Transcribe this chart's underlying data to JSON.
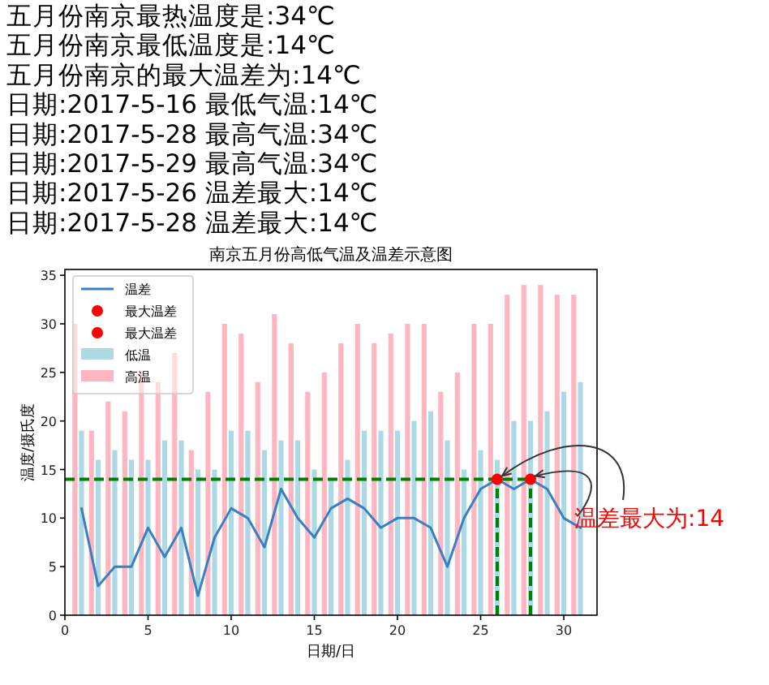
{
  "chart_data": {
    "type": "bar",
    "title": "南京五月份高低气温及温差示意图",
    "xlabel": "日期/日",
    "ylabel": "温度/摄氏度",
    "annotations": [
      "五月份南京最热温度是:34℃",
      "五月份南京最低温度是:14℃",
      "五月份南京的最大温差为:14℃",
      "日期:2017-5-16 最低气温:14℃",
      "日期:2017-5-28 最高气温:34℃",
      "日期:2017-5-29 最高气温:34℃",
      "日期:2017-5-26 温差最大:14℃",
      "日期:2017-5-28 温差最大:14℃",
      {
        "text": "温差最大为:14",
        "x": 28,
        "y": 14
      }
    ],
    "xlim": [
      0,
      32
    ],
    "ylim": [
      0,
      35.6
    ],
    "xticks": [
      0,
      5,
      10,
      15,
      20,
      25,
      30
    ],
    "yticks": [
      0,
      5,
      10,
      15,
      20,
      25,
      30,
      35
    ],
    "legend": "top left",
    "x": [
      1,
      2,
      3,
      4,
      5,
      6,
      7,
      8,
      9,
      10,
      11,
      12,
      13,
      14,
      15,
      16,
      17,
      18,
      19,
      20,
      21,
      22,
      23,
      24,
      25,
      26,
      27,
      28,
      29,
      30,
      31
    ],
    "series": [
      {
        "name": "温差",
        "type": "line",
        "color": "#3a7fc0",
        "values": [
          11,
          3,
          5,
          5,
          9,
          6,
          9,
          2,
          8,
          11,
          10,
          7,
          13,
          10,
          8,
          11,
          12,
          11,
          9,
          10,
          10,
          9,
          5,
          10,
          13,
          14,
          13,
          14,
          13,
          10,
          9
        ]
      },
      {
        "name": "最大温差",
        "type": "scatter",
        "color": "#ff0000",
        "marker": "circle",
        "x": [
          26
        ],
        "values": [
          14
        ]
      },
      {
        "name": "最大温差",
        "type": "scatter",
        "color": "#ff0000",
        "marker": "circle",
        "x": [
          28
        ],
        "values": [
          14
        ]
      },
      {
        "name": "低温",
        "color": "#add8e6",
        "values": [
          19,
          16,
          17,
          16,
          16,
          18,
          18,
          15,
          15,
          19,
          19,
          17,
          18,
          18,
          15,
          14,
          16,
          19,
          19,
          19,
          20,
          21,
          18,
          15,
          17,
          16,
          20,
          20,
          21,
          23,
          24
        ]
      },
      {
        "name": "高温",
        "color": "#ffb6c1",
        "values": [
          30,
          19,
          22,
          21,
          25,
          24,
          27,
          17,
          23,
          30,
          29,
          24,
          31,
          28,
          23,
          25,
          28,
          30,
          28,
          29,
          30,
          30,
          23,
          25,
          30,
          30,
          33,
          34,
          34,
          33,
          33
        ]
      },
      {
        "type": "line",
        "color": "#008000",
        "line_style": "dashed",
        "x": [
          0,
          28
        ],
        "values": [
          14,
          14
        ]
      },
      {
        "type": "line",
        "color": "#008000",
        "line_style": "dashed",
        "x": [
          26,
          26
        ],
        "values": [
          0,
          14
        ]
      },
      {
        "type": "line",
        "color": "#008000",
        "line_style": "dashed",
        "x": [
          28,
          28
        ],
        "values": [
          0,
          14
        ]
      }
    ]
  }
}
